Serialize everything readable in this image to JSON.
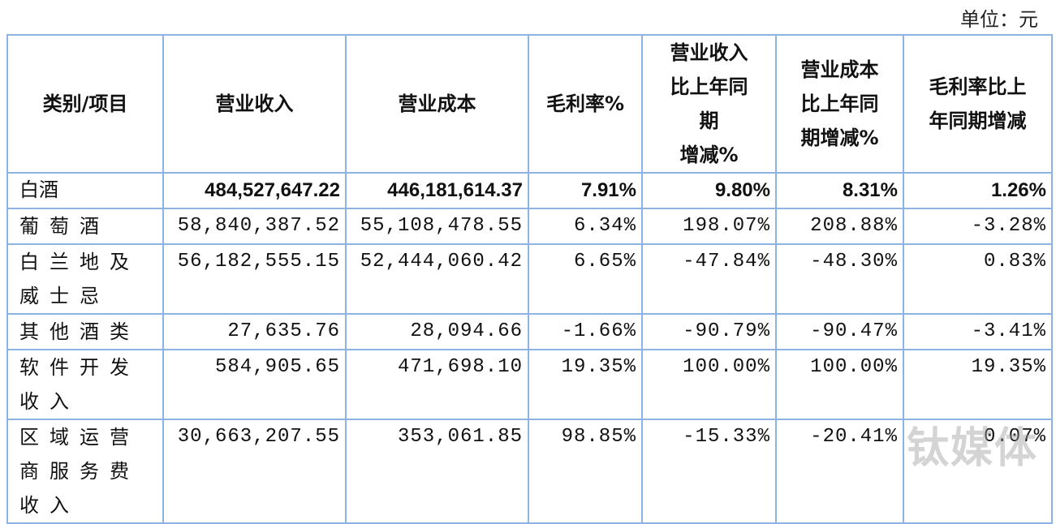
{
  "unit": "单位：元",
  "table": {
    "header": [
      [
        "类别/项目"
      ],
      [
        "营业收入"
      ],
      [
        "营业成本"
      ],
      [
        "毛利率%"
      ],
      [
        "营业收入",
        "比上年同",
        "期",
        "增减%"
      ],
      [
        "营业成本",
        "比上年同",
        "期增减%"
      ],
      [
        "毛利率比上",
        "年同期增减"
      ]
    ],
    "rows": [
      [
        "白酒",
        "484,527,647.22",
        "446,181,614.37",
        "7.91%",
        "9.80%",
        "8.31%",
        "1.26%"
      ],
      [
        "葡萄酒",
        "58,840,387.52",
        "55,108,478.55",
        "6.34%",
        "198.07%",
        "208.88%",
        "-3.28%"
      ],
      [
        "白兰地及威士忌",
        "56,182,555.15",
        "52,444,060.42",
        "6.65%",
        "-47.84%",
        "-48.30%",
        "0.83%"
      ],
      [
        "其他酒类",
        "27,635.76",
        "28,094.66",
        "-1.66%",
        "-90.79%",
        "-90.47%",
        "-3.41%"
      ],
      [
        "软件开发收入",
        "584,905.65",
        "471,698.10",
        "19.35%",
        "100.00%",
        "100.00%",
        "19.35%"
      ],
      [
        "区域运营商服务费收入",
        "30,663,207.55",
        "353,061.85",
        "98.85%",
        "-15.33%",
        "-20.41%",
        "0.07%"
      ]
    ]
  },
  "watermark": "钛媒体"
}
